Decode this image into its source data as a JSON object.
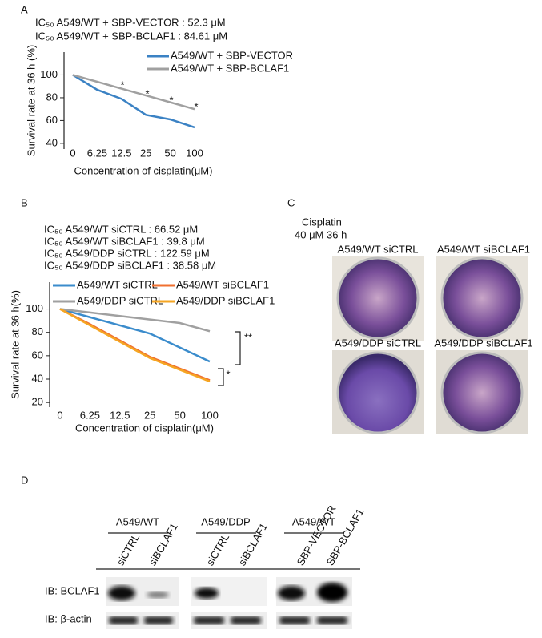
{
  "panel_labels": [
    "A",
    "B",
    "C",
    "D"
  ],
  "chart_data": [
    {
      "type": "line",
      "subtitle": [
        "IC₅₀  A549/WT + SBP-VECTOR : 52.3 μM",
        "IC₅₀  A549/WT + SBP-BCLAF1 : 84.61 μM"
      ],
      "x_label": "Concentration of cisplatin(μM)",
      "y_label": "Survival rate at 36 h (%)",
      "categories": [
        "0",
        "6.25",
        "12.5",
        "25",
        "50",
        "100"
      ],
      "series": [
        {
          "name": "A549/WT + SBP-VECTOR",
          "color": "#3b82c4",
          "values": [
            100,
            87,
            79,
            65,
            61,
            54
          ]
        },
        {
          "name": "A549/WT + SBP-BCLAF1",
          "color": "#a0a0a0",
          "values": [
            100,
            94,
            88,
            82,
            76,
            70
          ]
        }
      ],
      "ylim": [
        35,
        120
      ],
      "yticks": [
        40,
        60,
        80,
        100
      ],
      "annotations": [
        "*",
        "*",
        "*",
        "*"
      ]
    },
    {
      "type": "line",
      "subtitle": [
        "IC₅₀  A549/WT siCTRL : 66.52 μM",
        "IC₅₀  A549/WT siBCLAF1 : 39.8 μM",
        "IC₅₀  A549/DDP siCTRL : 122.59 μM",
        "IC₅₀  A549/DDP siBCLAF1 : 38.58 μM"
      ],
      "x_label": "Concentration of cisplatin(μM)",
      "y_label": "Survival rate at 36 h(%)",
      "categories": [
        "0",
        "6.25",
        "12.5",
        "25",
        "50",
        "100"
      ],
      "series": [
        {
          "name": "A549/WT siCTRL",
          "color": "#3b8ccc",
          "values": [
            100,
            93,
            86,
            79,
            67,
            55
          ]
        },
        {
          "name": "A549/WT siBCLAF1",
          "color": "#f07030",
          "values": [
            100,
            87,
            73,
            59,
            49,
            39
          ]
        },
        {
          "name": "A549/DDP siCTRL",
          "color": "#a0a0a0",
          "values": [
            100,
            97,
            94,
            91,
            88,
            81
          ]
        },
        {
          "name": "A549/DDP siBCLAF1",
          "color": "#f5a623",
          "values": [
            100,
            86,
            72,
            58,
            48,
            38
          ]
        }
      ],
      "ylim": [
        16,
        123
      ],
      "yticks": [
        20,
        40,
        60,
        80,
        100
      ],
      "annotations": [
        "**",
        "*"
      ]
    }
  ],
  "panel_c": {
    "treatment": [
      "Cisplatin",
      "40 μM 36 h"
    ],
    "images": [
      "A549/WT siCTRL",
      "A549/WT siBCLAF1",
      "A549/DDP siCTRL",
      "A549/DDP siBCLAF1"
    ]
  },
  "panel_d": {
    "groups": [
      "A549/WT",
      "A549/DDP",
      "A549/WT"
    ],
    "lanes": [
      "siCTRL",
      "siBCLAF1",
      "siCTRL",
      "siBCLAF1",
      "SBP-VECTOR",
      "SBP-BCLAF1"
    ],
    "rows": [
      "IB: BCLAF1",
      "IB: β-actin"
    ]
  }
}
